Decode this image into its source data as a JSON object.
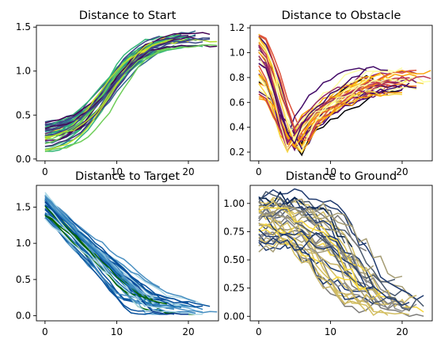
{
  "chart_data": [
    {
      "type": "line",
      "title": "Distance to Start",
      "xlabel": "",
      "ylabel": "",
      "xlim": [
        -1.2,
        24.2
      ],
      "ylim": [
        -0.02,
        1.52
      ],
      "xticks": [
        0,
        10,
        20
      ],
      "yticks": [
        0.0,
        0.5,
        1.0,
        1.5
      ],
      "colormap": "viridis",
      "trend": {
        "start_range": [
          0.05,
          0.4
        ],
        "end_range": [
          1.28,
          1.46
        ],
        "rise_center_range": [
          7.5,
          10.5
        ],
        "rise_width_range": [
          2.0,
          3.0
        ],
        "length_range": [
          14,
          24
        ]
      },
      "series_count": 40,
      "colors": [
        "#440154",
        "#482878",
        "#3e4a89",
        "#31688e",
        "#26828e",
        "#1f9e89",
        "#35b779",
        "#6ece58",
        "#b5de2b",
        "#fde725"
      ]
    },
    {
      "type": "line",
      "title": "Distance to Obstacle",
      "xlabel": "",
      "ylabel": "",
      "xlim": [
        -1.2,
        24.2
      ],
      "ylim": [
        0.13,
        1.22
      ],
      "xticks": [
        0,
        10,
        20
      ],
      "yticks": [
        0.2,
        0.4,
        0.6,
        0.8,
        1.0,
        1.2
      ],
      "colormap": "inferno",
      "trend": {
        "start_range": [
          0.64,
          1.16
        ],
        "min_range": [
          0.18,
          0.32
        ],
        "min_x_range": [
          4.0,
          7.0
        ],
        "end_range": [
          0.66,
          0.88
        ],
        "length_range": [
          14,
          24
        ]
      },
      "series_count": 40,
      "colors": [
        "#000004",
        "#420a68",
        "#6a176e",
        "#932667",
        "#bc3754",
        "#dd513a",
        "#f37819",
        "#fca50a",
        "#f6d746",
        "#fcffa4"
      ]
    },
    {
      "type": "line",
      "title": "Distance to Target",
      "xlabel": "",
      "ylabel": "",
      "xlim": [
        -1.2,
        24.2
      ],
      "ylim": [
        -0.07,
        1.8
      ],
      "xticks": [
        0,
        10,
        20
      ],
      "yticks": [
        0.0,
        0.5,
        1.0,
        1.5
      ],
      "colormap": "blues",
      "trend": {
        "start_range": [
          1.33,
          1.7
        ],
        "end_range": [
          0.02,
          0.35
        ],
        "end_x_range": [
          10,
          17
        ],
        "length_range": [
          13,
          24
        ]
      },
      "series_count": 40,
      "colors": [
        "#add8e6",
        "#6baed6",
        "#3182bd",
        "#08519c",
        "#1f77b4",
        "#006400",
        "#0b3d91",
        "#4a90c2"
      ]
    },
    {
      "type": "line",
      "title": "Distance to Ground",
      "xlabel": "",
      "ylabel": "",
      "xlim": [
        -1.2,
        24.2
      ],
      "ylim": [
        -0.04,
        1.16
      ],
      "xticks": [
        0,
        10,
        20
      ],
      "yticks": [
        0.0,
        0.25,
        0.5,
        0.75,
        1.0
      ],
      "colormap": "cividis",
      "trend": {
        "start_range": [
          0.63,
          1.1
        ],
        "end_range": [
          0.0,
          0.27
        ],
        "fall_x_range": [
          6,
          16
        ],
        "length_range": [
          11,
          24
        ]
      },
      "series_count": 40,
      "colors": [
        "#00204c",
        "#1f3a6e",
        "#4b5a6e",
        "#7c7b78",
        "#a59c74",
        "#d3be60",
        "#f7d840",
        "#8c8c8c",
        "#c8b469"
      ]
    }
  ]
}
